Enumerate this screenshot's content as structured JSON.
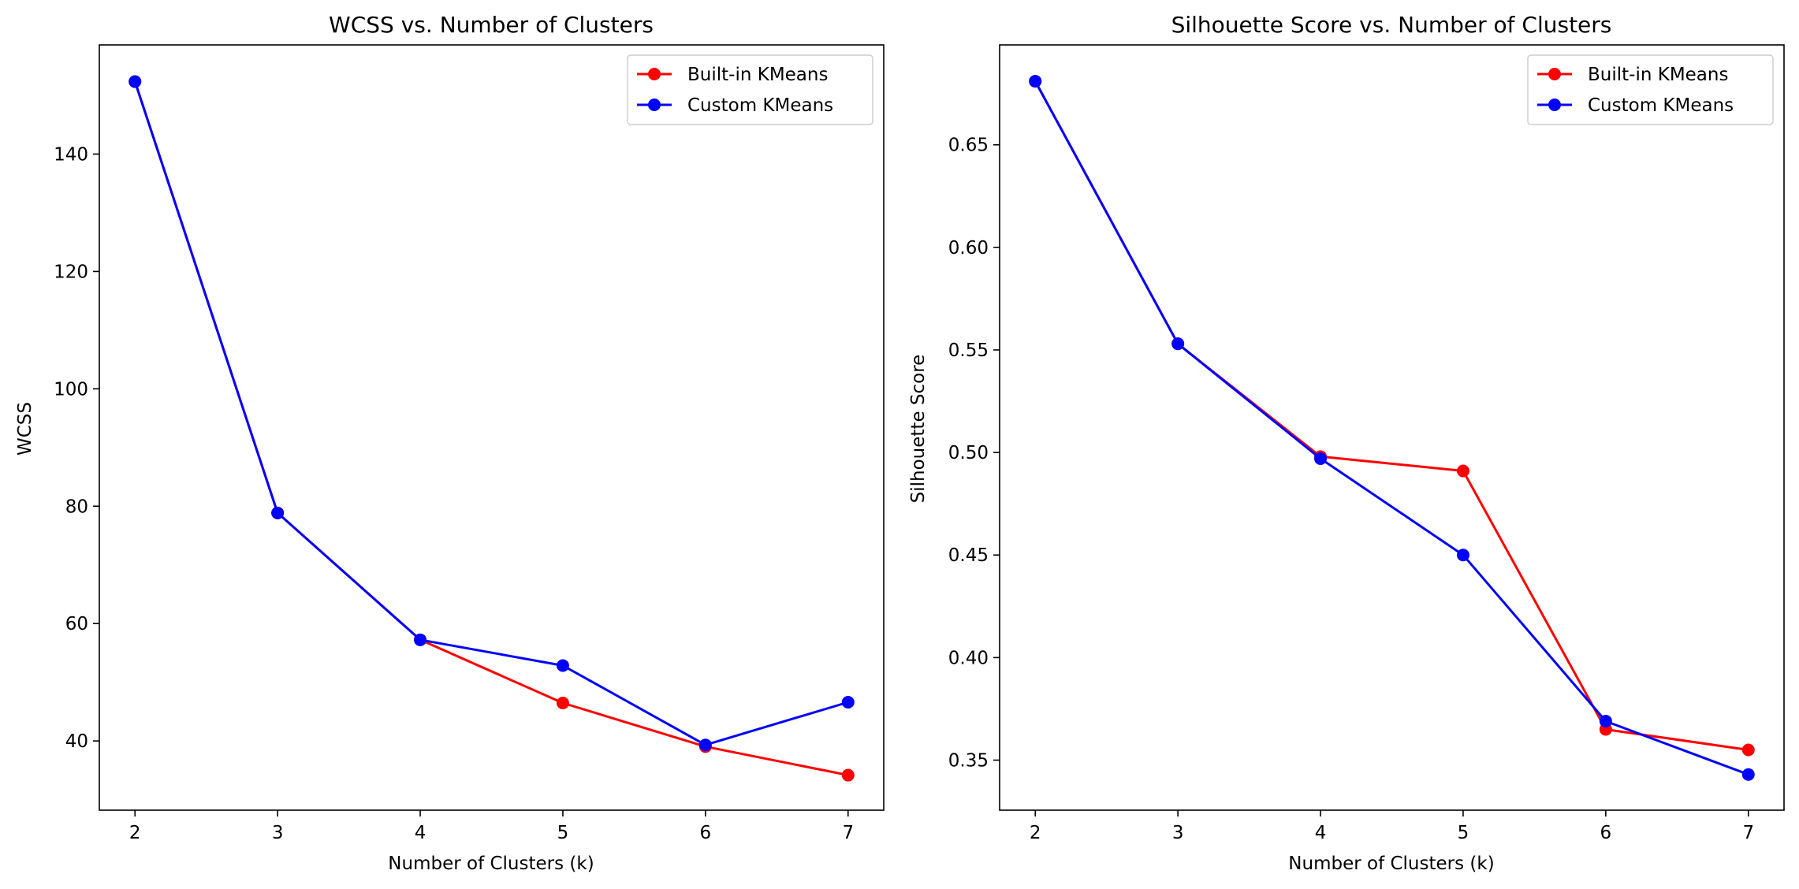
{
  "chart_data": [
    {
      "type": "line",
      "title": "WCSS vs. Number of Clusters",
      "xlabel": "Number of Clusters (k)",
      "ylabel": "WCSS",
      "x": [
        2,
        3,
        4,
        5,
        6,
        7
      ],
      "xlim": [
        1.75,
        7.25
      ],
      "ylim": [
        28.2,
        158.6
      ],
      "yticks": [
        40,
        60,
        80,
        100,
        120,
        140
      ],
      "grid": false,
      "legend_position": "upper right",
      "series": [
        {
          "name": "Built-in KMeans",
          "color": "#ff0000",
          "marker": "circle",
          "values": [
            152.35,
            78.85,
            57.23,
            46.46,
            39.04,
            34.17
          ]
        },
        {
          "name": "Custom KMeans",
          "color": "#0000ff",
          "marker": "circle",
          "values": [
            152.35,
            78.85,
            57.23,
            52.84,
            39.32,
            46.6
          ]
        }
      ]
    },
    {
      "type": "line",
      "title": "Silhouette Score vs. Number of Clusters",
      "xlabel": "Number of Clusters (k)",
      "ylabel": "Silhouette Score",
      "x": [
        2,
        3,
        4,
        5,
        6,
        7
      ],
      "xlim": [
        1.75,
        7.25
      ],
      "ylim": [
        0.3256,
        0.6987
      ],
      "yticks": [
        0.35,
        0.4,
        0.45,
        0.5,
        0.55,
        0.6,
        0.65
      ],
      "ytick_decimals": 2,
      "grid": false,
      "legend_position": "upper right",
      "series": [
        {
          "name": "Built-in KMeans",
          "color": "#ff0000",
          "marker": "circle",
          "values": [
            0.681,
            0.553,
            0.498,
            0.491,
            0.365,
            0.355
          ]
        },
        {
          "name": "Custom KMeans",
          "color": "#0000ff",
          "marker": "circle",
          "values": [
            0.681,
            0.553,
            0.497,
            0.45,
            0.369,
            0.343
          ]
        }
      ]
    }
  ]
}
